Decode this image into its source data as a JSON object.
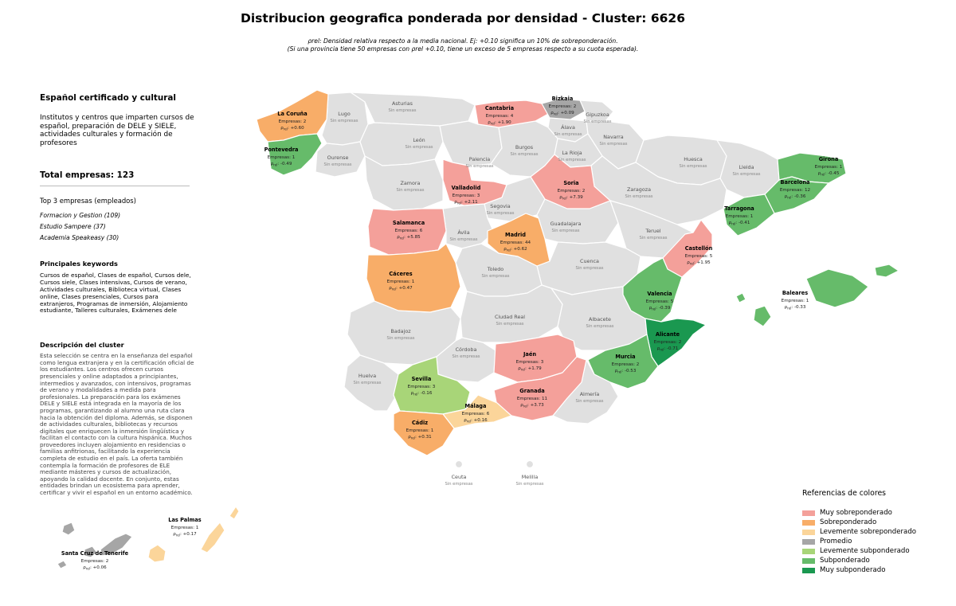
{
  "header": {
    "title": "Distribucion geografica ponderada por densidad - Cluster: 6626",
    "subtitle_line1": "ρrel: Densidad relativa respecto a la media nacional. Ej: +0.10 significa un 10% de sobreponderación.",
    "subtitle_line2": "(Si una provincia tiene 50 empresas con ρrel +0.10, tiene un exceso de 5 empresas respecto a su cuota esperada)."
  },
  "panel": {
    "title": "Español certificado y cultural",
    "intro": "Institutos y centros que imparten cursos de español, preparación de DELE y SIELE, actividades culturales y formación de profesores",
    "total": "Total empresas: 123",
    "top_title": "Top 3 empresas (empleados)",
    "top_companies": [
      "Formacion y Gestion (109)",
      "Estudio Sampere (37)",
      "Academia Speakeasy (30)"
    ],
    "keywords_title": "Principales keywords",
    "keywords": "Cursos de español, Clases de español, Cursos dele, Cursos siele, Clases intensivas, Cursos de verano, Actividades culturales, Biblioteca virtual, Clases online, Clases presenciales, Cursos para extranjeros, Programas de inmersión, Alojamiento estudiante, Talleres culturales, Exámenes dele",
    "description_title": "Descripción del cluster",
    "description": "Esta selección se centra en la enseñanza del español como lengua extranjera y en la certificación oficial de los estudiantes. Los centros ofrecen cursos presenciales y online adaptados a principiantes, intermedios y avanzados, con intensivos, programas de verano y modalidades a medida para profesionales. La preparación para los exámenes DELE y SIELE está integrada en la mayoría de los programas, garantizando al alumno una ruta clara hacia la obtención del diploma. Además, se disponen de actividades culturales, bibliotecas y recursos digitales que enriquecen la inmersión lingüística y facilitan el contacto con la cultura hispánica. Muchos proveedores incluyen alojamiento en residencias o familias anfitrionas, facilitando la experiencia completa de estudio en el país. La oferta también contempla la formación de profesores de ELE mediante másteres y cursos de actualización, apoyando la calidad docente. En conjunto, estas entidades brindan un ecosistema para aprender, certificar y vivir el español en un entorno académico."
  },
  "legend": {
    "title": "Referencias de colores",
    "items": [
      {
        "label": "Muy sobreponderado",
        "color": "#f4a09a"
      },
      {
        "label": "Sobreponderado",
        "color": "#f8ad68"
      },
      {
        "label": "Levemente sobreponderado",
        "color": "#fbd59a"
      },
      {
        "label": "Promedio",
        "color": "#a6a6a6"
      },
      {
        "label": "Levemente subponderado",
        "color": "#a8d578"
      },
      {
        "label": "Subponderado",
        "color": "#66bb6a"
      },
      {
        "label": "Muy subponderado",
        "color": "#1a9850"
      }
    ]
  },
  "map": {
    "empty_color": "#e0e0e0",
    "count_prefix": "Empresas: ",
    "rho_symbol": "ρ",
    "rho_sub": "rel",
    "no_data_label": "Sin empresas",
    "provinces_with_data": [
      {
        "name": "La Coruña",
        "count": 2,
        "rho": "+0.60",
        "level": 1
      },
      {
        "name": "Pontevedra",
        "count": 1,
        "rho": "-0.49",
        "level": 5
      },
      {
        "name": "Cantabria",
        "count": 4,
        "rho": "+1.90",
        "level": 0
      },
      {
        "name": "Bizkaia",
        "count": 2,
        "rho": "+0.09",
        "level": 3
      },
      {
        "name": "Valladolid",
        "count": 3,
        "rho": "+2.11",
        "level": 0
      },
      {
        "name": "Soria",
        "count": 2,
        "rho": "+7.39",
        "level": 0
      },
      {
        "name": "Salamanca",
        "count": 6,
        "rho": "+5.85",
        "level": 0
      },
      {
        "name": "Madrid",
        "count": 44,
        "rho": "+0.62",
        "level": 1
      },
      {
        "name": "Cáceres",
        "count": 1,
        "rho": "+0.47",
        "level": 1
      },
      {
        "name": "Castellón",
        "count": 5,
        "rho": "+1.95",
        "level": 0
      },
      {
        "name": "Valencia",
        "count": 5,
        "rho": "-0.39",
        "level": 5
      },
      {
        "name": "Alicante",
        "count": 2,
        "rho": "-0.71",
        "level": 6
      },
      {
        "name": "Murcia",
        "count": 2,
        "rho": "-0.53",
        "level": 5
      },
      {
        "name": "Jaén",
        "count": 3,
        "rho": "+1.79",
        "level": 0
      },
      {
        "name": "Granada",
        "count": 11,
        "rho": "+3.73",
        "level": 0
      },
      {
        "name": "Sevilla",
        "count": 3,
        "rho": "-0.16",
        "level": 4
      },
      {
        "name": "Málaga",
        "count": 6,
        "rho": "+0.16",
        "level": 2
      },
      {
        "name": "Cádiz",
        "count": 1,
        "rho": "+0.31",
        "level": 1
      },
      {
        "name": "Girona",
        "count": 1,
        "rho": "-0.45",
        "level": 5
      },
      {
        "name": "Barcelona",
        "count": 12,
        "rho": "-0.36",
        "level": 5
      },
      {
        "name": "Tarragona",
        "count": 1,
        "rho": "-0.41",
        "level": 5
      },
      {
        "name": "Baleares",
        "count": 1,
        "rho": "-0.33",
        "level": 5
      },
      {
        "name": "Las Palmas",
        "count": 1,
        "rho": "+0.17",
        "level": 2
      },
      {
        "name": "Santa Cruz de Tenerife",
        "count": 2,
        "rho": "+0.06",
        "level": 3
      }
    ],
    "provinces_without_data": [
      "Asturias",
      "Lugo",
      "Ourense",
      "León",
      "Palencia",
      "Burgos",
      "Álava",
      "Gipuzkoa",
      "Navarra",
      "La Rioja",
      "Huesca",
      "Lleida",
      "Zamora",
      "Segovia",
      "Zaragoza",
      "Ávila",
      "Guadalajara",
      "Teruel",
      "Cuenca",
      "Toledo",
      "Badajoz",
      "Ciudad Real",
      "Albacete",
      "Córdoba",
      "Huelva",
      "Almería",
      "Ceuta",
      "Melilla"
    ]
  }
}
